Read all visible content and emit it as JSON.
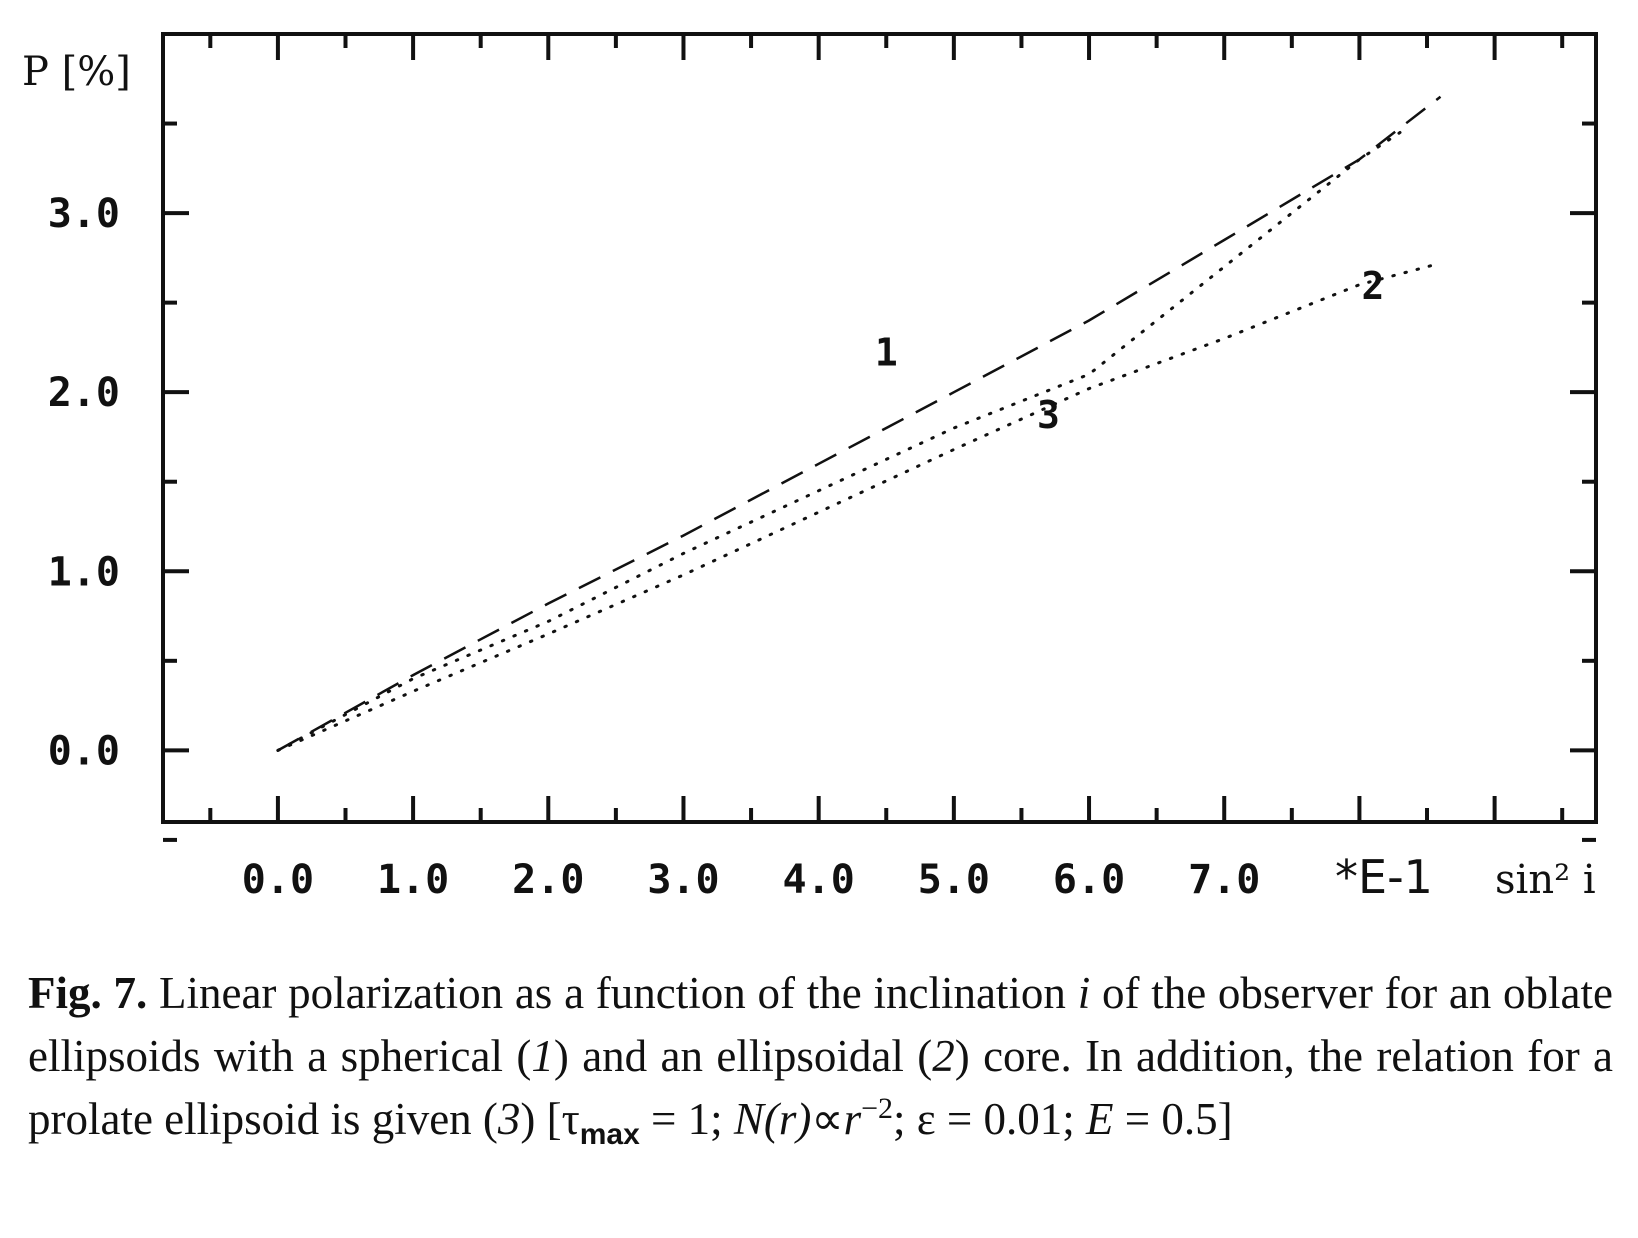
{
  "chart_data": {
    "type": "line",
    "title": "",
    "xlabel": "sin² i",
    "ylabel": "P [%]",
    "x_multiplier": "*E-1",
    "xlim": [
      -0.85,
      9.75
    ],
    "ylim": [
      -0.4,
      4.0
    ],
    "x_ticks": [
      0.0,
      1.0,
      2.0,
      3.0,
      4.0,
      5.0,
      6.0,
      7.0
    ],
    "x_tick_labels": [
      "0.0",
      "1.0",
      "2.0",
      "3.0",
      "4.0",
      "5.0",
      "6.0",
      "7.0"
    ],
    "y_ticks": [
      0.0,
      1.0,
      2.0,
      3.0
    ],
    "y_tick_labels": [
      "0.0",
      "1.0",
      "2.0",
      "3.0"
    ],
    "grid": false,
    "series": [
      {
        "name": "1",
        "style": "dashed",
        "x": [
          0.0,
          1.0,
          2.0,
          3.0,
          4.0,
          5.0,
          6.0,
          7.0,
          8.0,
          8.6
        ],
        "y": [
          0.0,
          0.42,
          0.82,
          1.2,
          1.6,
          2.0,
          2.4,
          2.85,
          3.3,
          3.65
        ]
      },
      {
        "name": "2",
        "style": "dotted",
        "x": [
          0.0,
          1.0,
          2.0,
          3.0,
          4.0,
          5.0,
          6.0,
          7.0,
          8.0,
          8.6
        ],
        "y": [
          0.0,
          0.33,
          0.65,
          0.98,
          1.33,
          1.68,
          2.02,
          2.3,
          2.6,
          2.72
        ]
      },
      {
        "name": "3",
        "style": "dotted",
        "x": [
          0.0,
          1.0,
          2.0,
          3.0,
          4.0,
          5.0,
          6.0,
          7.0,
          8.0,
          8.3
        ],
        "y": [
          0.0,
          0.4,
          0.72,
          1.1,
          1.45,
          1.8,
          2.1,
          2.7,
          3.3,
          3.45
        ]
      }
    ],
    "annotations": [
      {
        "text": "1",
        "x": 4.5,
        "y": 2.15
      },
      {
        "text": "2",
        "x": 8.1,
        "y": 2.52
      },
      {
        "text": "3",
        "x": 5.7,
        "y": 1.8
      }
    ]
  },
  "caption": {
    "fig_label": "Fig. 7.",
    "part1": " Linear polarization as a function of the inclination ",
    "var_i": "i",
    "part2": " of the observer for an oblate ellipsoids with a spherical (",
    "ref1": "1",
    "part3": ") and an ellipsoidal (",
    "ref2": "2",
    "part4": ") core. In addition, the relation for a prolate ellipsoid is given (",
    "ref3": "3",
    "part5": ") [τ",
    "tau_sub": "max",
    "part6": " = 1; ",
    "n_of_r": "N(r)",
    "part7": "∝",
    "r_var": "r",
    "r_exp": "−2",
    "part8": "; ε = 0.01; ",
    "e_var": "E",
    "part9": " = 0.5]"
  }
}
